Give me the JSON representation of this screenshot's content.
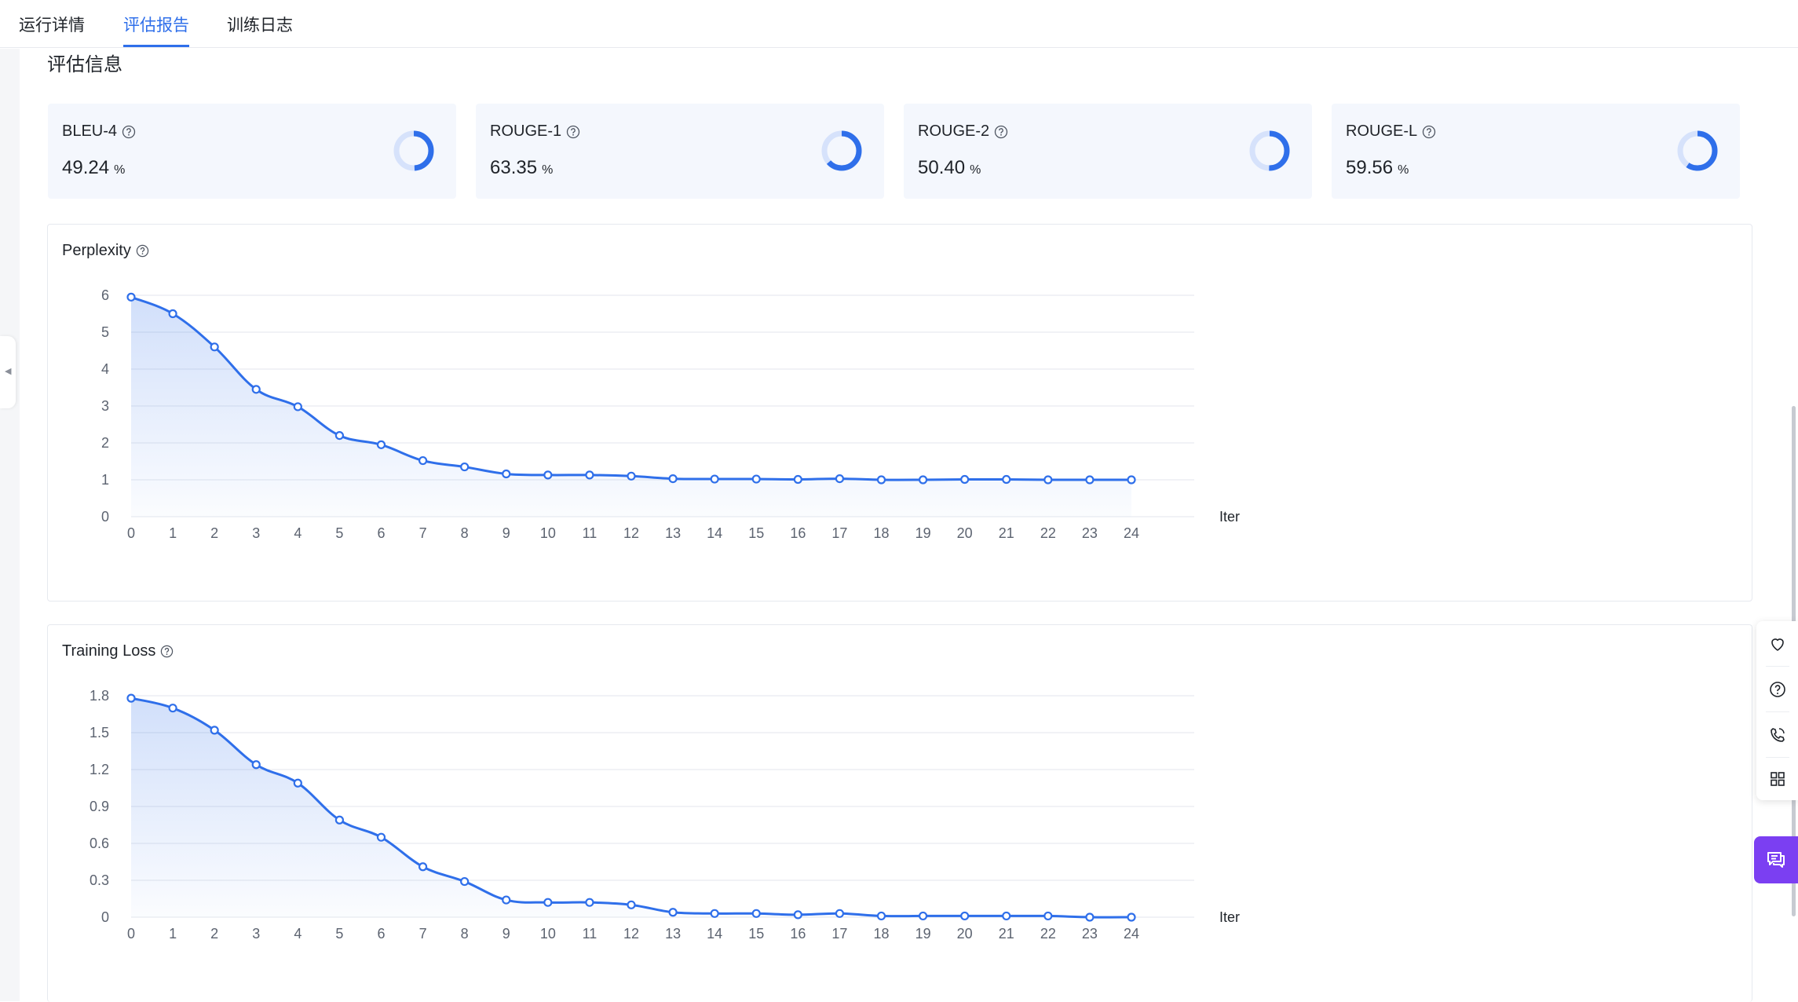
{
  "tabs": [
    {
      "label": "运行详情",
      "active": false
    },
    {
      "label": "评估报告",
      "active": true
    },
    {
      "label": "训练日志",
      "active": false
    }
  ],
  "section_title": "评估信息",
  "metrics": [
    {
      "name": "BLEU-4",
      "value": "49.24",
      "unit": "%",
      "fraction": 0.4924
    },
    {
      "name": "ROUGE-1",
      "value": "63.35",
      "unit": "%",
      "fraction": 0.6335
    },
    {
      "name": "ROUGE-2",
      "value": "50.40",
      "unit": "%",
      "fraction": 0.504
    },
    {
      "name": "ROUGE-L",
      "value": "59.56",
      "unit": "%",
      "fraction": 0.5956
    }
  ],
  "colors": {
    "accent": "#2f6fea",
    "donut_track": "#d6e2fb",
    "chat_button": "#7b3ff2"
  },
  "chart_data": [
    {
      "type": "area",
      "title": "Perplexity",
      "xlabel": "Iter",
      "ylabel": "",
      "x": [
        0,
        1,
        2,
        3,
        4,
        5,
        6,
        7,
        8,
        9,
        10,
        11,
        12,
        13,
        14,
        15,
        16,
        17,
        18,
        19,
        20,
        21,
        22,
        23,
        24
      ],
      "values": [
        5.95,
        5.5,
        4.6,
        3.45,
        2.98,
        2.2,
        1.95,
        1.52,
        1.35,
        1.16,
        1.13,
        1.13,
        1.1,
        1.03,
        1.02,
        1.02,
        1.01,
        1.03,
        1.0,
        1.0,
        1.01,
        1.01,
        1.0,
        1.0,
        1.0
      ],
      "yticks": [
        0,
        1,
        2,
        3,
        4,
        5,
        6
      ],
      "yticklabels": [
        "0",
        "1",
        "2",
        "3",
        "4",
        "5",
        "6"
      ],
      "ylim": [
        0,
        6
      ],
      "grid": true
    },
    {
      "type": "area",
      "title": "Training Loss",
      "xlabel": "Iter",
      "ylabel": "",
      "x": [
        0,
        1,
        2,
        3,
        4,
        5,
        6,
        7,
        8,
        9,
        10,
        11,
        12,
        13,
        14,
        15,
        16,
        17,
        18,
        19,
        20,
        21,
        22,
        23,
        24
      ],
      "values": [
        1.78,
        1.7,
        1.52,
        1.24,
        1.09,
        0.79,
        0.65,
        0.41,
        0.29,
        0.14,
        0.12,
        0.12,
        0.1,
        0.04,
        0.03,
        0.03,
        0.02,
        0.03,
        0.01,
        0.01,
        0.01,
        0.01,
        0.01,
        0.0,
        0.0
      ],
      "yticks": [
        0,
        0.3,
        0.6,
        0.9,
        1.2,
        1.5,
        1.8
      ],
      "yticklabels": [
        "0",
        "0.3",
        "0.6",
        "0.9",
        "1.2",
        "1.5",
        "1.8"
      ],
      "ylim": [
        0,
        1.8
      ],
      "grid": true
    }
  ],
  "side_toolbar": [
    {
      "icon": "heart-icon"
    },
    {
      "icon": "help-circle-icon"
    },
    {
      "icon": "phone-icon"
    },
    {
      "icon": "grid-icon"
    }
  ],
  "chat_icon": "chat-bubble-icon"
}
